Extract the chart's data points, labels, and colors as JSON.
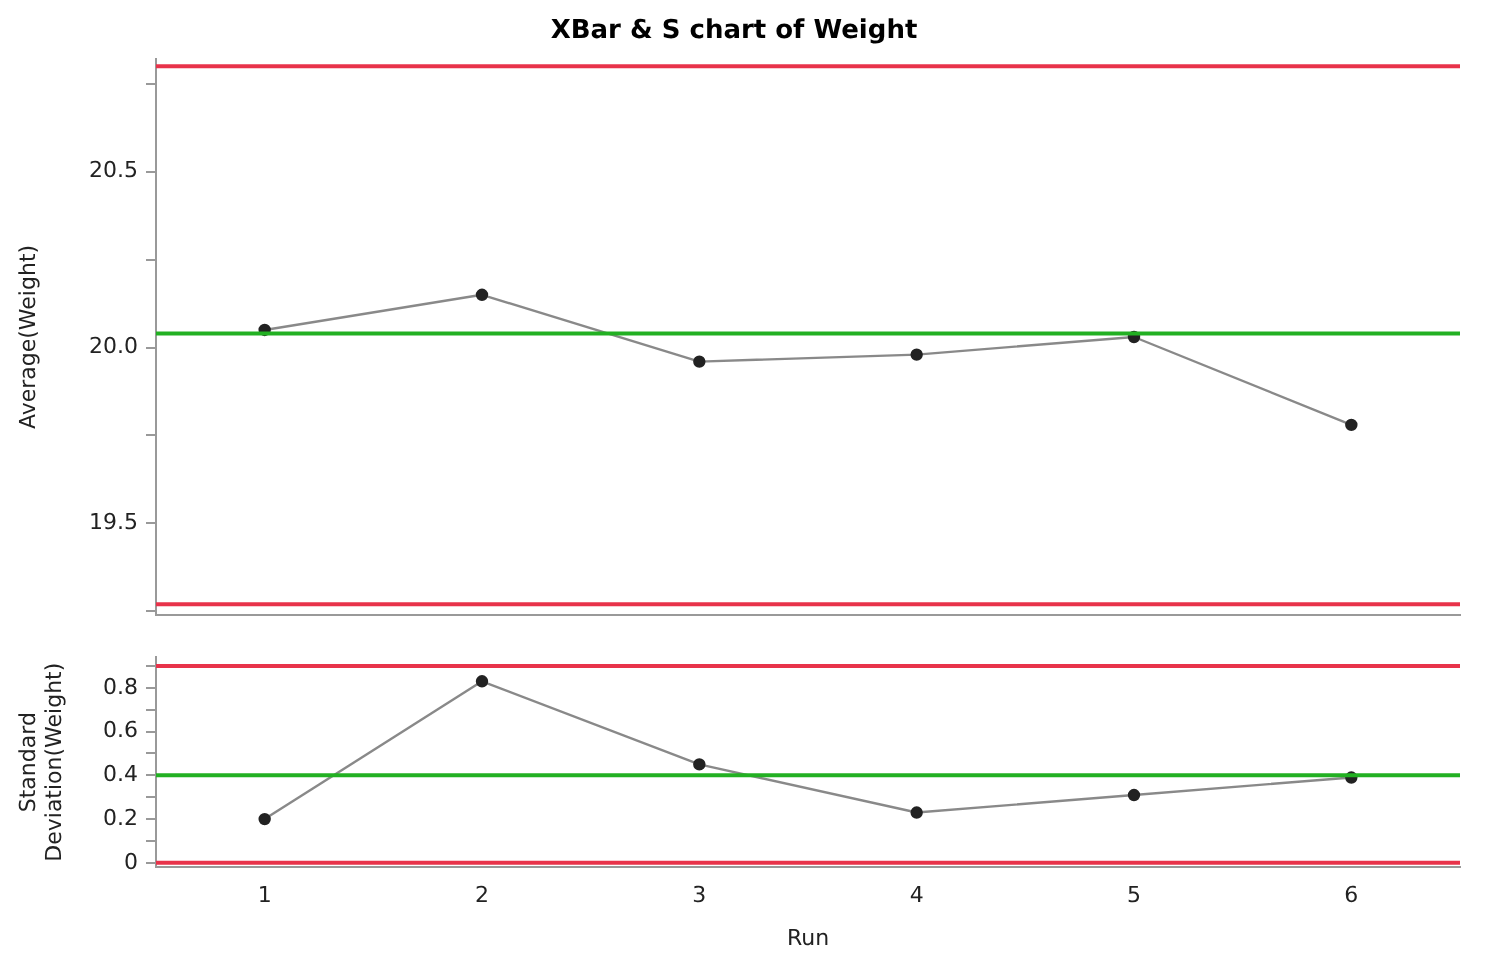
{
  "chart_data": [
    {
      "type": "line",
      "title": "XBar & S chart of Weight",
      "ylabel": "Average(Weight)",
      "categories": [
        "1",
        "2",
        "3",
        "4",
        "5",
        "6"
      ],
      "series": [
        {
          "color": "#222222",
          "values": [
            20.05,
            20.15,
            19.96,
            19.98,
            20.03,
            19.78
          ]
        }
      ],
      "ylim": [
        19.24,
        20.82
      ],
      "yticks": [
        {
          "value": 19.25,
          "label": null
        },
        19.5,
        {
          "value": 19.75,
          "label": null
        },
        {
          "value": 20,
          "label": "20.0"
        },
        {
          "value": 20.25,
          "label": null
        },
        20.5,
        {
          "value": 20.75,
          "label": null
        }
      ],
      "ref_lines": [
        {
          "axis": "y",
          "value": 20.8,
          "color": "#e8334a"
        },
        {
          "axis": "y",
          "value": 20.04,
          "color": "#22b022"
        },
        {
          "axis": "y",
          "value": 19.27,
          "color": "#e8334a"
        }
      ],
      "grid": false,
      "legend": false,
      "marker": "circle",
      "tick_labels": "y"
    },
    {
      "type": "line",
      "ylabel": "Standard Deviation(Weight)",
      "xlabel": "Run",
      "categories": [
        "1",
        "2",
        "3",
        "4",
        "5",
        "6"
      ],
      "series": [
        {
          "color": "#222222",
          "values": [
            0.2,
            0.83,
            0.45,
            0.23,
            0.31,
            0.39
          ]
        }
      ],
      "ylim": [
        -0.02,
        0.94
      ],
      "yticks": [
        0,
        {
          "value": 0.1,
          "label": null
        },
        0.2,
        {
          "value": 0.3,
          "label": null
        },
        0.4,
        {
          "value": 0.5,
          "label": null
        },
        0.6,
        {
          "value": 0.7,
          "label": null
        },
        0.8,
        {
          "value": 0.9,
          "label": null
        }
      ],
      "ref_lines": [
        {
          "axis": "y",
          "value": 0.9,
          "color": "#e8334a"
        },
        {
          "axis": "y",
          "value": 0.4,
          "color": "#22b022"
        },
        {
          "axis": "y",
          "value": 0,
          "color": "#e8334a"
        }
      ],
      "grid": false,
      "legend": false,
      "marker": "circle"
    }
  ]
}
